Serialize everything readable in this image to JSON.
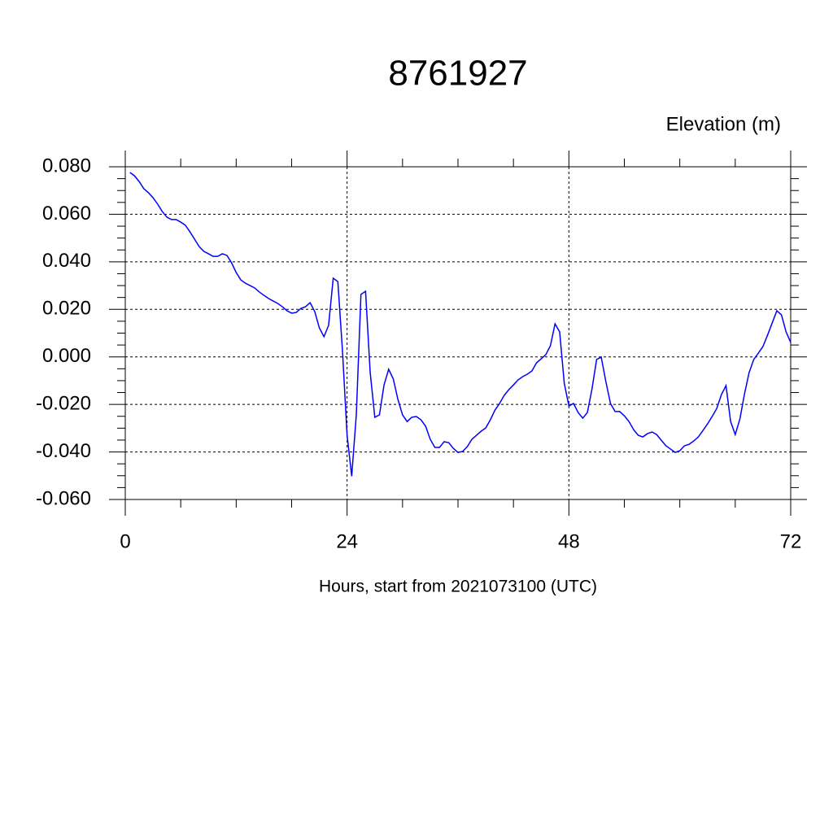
{
  "chart_data": {
    "type": "line",
    "title": "8761927",
    "ylabel": "Elevation (m)",
    "xlabel": "Hours, start from 2021073100 (UTC)",
    "xlim": [
      0,
      72
    ],
    "xticks": [
      0,
      24,
      48,
      72
    ],
    "ylim": [
      -0.06,
      0.08
    ],
    "yticks": [
      {
        "value": -0.06,
        "label": "-0.060"
      },
      {
        "value": -0.04,
        "label": "-0.040"
      },
      {
        "value": -0.02,
        "label": "-0.020"
      },
      {
        "value": 0,
        "label": "0.000"
      },
      {
        "value": 0.02,
        "label": "0.020"
      },
      {
        "value": 0.04,
        "label": "0.040"
      },
      {
        "value": 0.06,
        "label": "0.060"
      },
      {
        "value": 0.08,
        "label": "0.080"
      }
    ],
    "grid": true,
    "color": "#0000ff",
    "x": [
      0.5,
      1,
      1.5,
      2,
      2.5,
      3,
      3.5,
      4,
      4.5,
      5,
      5.5,
      6,
      6.5,
      7,
      7.5,
      8,
      8.5,
      9,
      9.5,
      10,
      10.5,
      11,
      11.5,
      12,
      12.5,
      13,
      13.5,
      14,
      14.5,
      15,
      15.5,
      16,
      16.5,
      17,
      17.5,
      18,
      18.5,
      19,
      19.5,
      20,
      20.5,
      21,
      21.5,
      22,
      22.5,
      23,
      23.5,
      24,
      24.5,
      25,
      25.5,
      26,
      26.5,
      27,
      27.5,
      28,
      28.5,
      29,
      29.5,
      30,
      30.5,
      31,
      31.5,
      32,
      32.5,
      33,
      33.5,
      34,
      34.5,
      35,
      35.5,
      36,
      36.5,
      37,
      37.5,
      38,
      38.5,
      39,
      39.5,
      40,
      40.5,
      41,
      41.5,
      42,
      42.5,
      43,
      43.5,
      44,
      44.5,
      45,
      45.5,
      46,
      46.5,
      47,
      47.5,
      48,
      48.5,
      49,
      49.5,
      50,
      50.5,
      51,
      51.5,
      52,
      52.5,
      53,
      53.5,
      54,
      54.5,
      55,
      55.5,
      56,
      56.5,
      57,
      57.5,
      58,
      58.5,
      59,
      59.5,
      60,
      60.5,
      61,
      61.5,
      62,
      62.5,
      63,
      63.5,
      64,
      64.5,
      65,
      65.5,
      66,
      66.5,
      67,
      67.5,
      68,
      68.5,
      69,
      69.5,
      70,
      70.5,
      71,
      71.5,
      72
    ],
    "values": [
      0.0776,
      0.0762,
      0.0738,
      0.0708,
      0.0691,
      0.067,
      0.0643,
      0.0612,
      0.0588,
      0.0578,
      0.0578,
      0.0567,
      0.0554,
      0.0526,
      0.0495,
      0.0464,
      0.0444,
      0.0434,
      0.0423,
      0.0423,
      0.0434,
      0.0427,
      0.0396,
      0.0355,
      0.0324,
      0.031,
      0.03,
      0.029,
      0.0273,
      0.0259,
      0.0246,
      0.0235,
      0.0225,
      0.0211,
      0.0194,
      0.0184,
      0.0187,
      0.0204,
      0.0211,
      0.0228,
      0.0191,
      0.0122,
      0.0085,
      0.0133,
      0.0331,
      0.0317,
      0.0026,
      -0.033,
      -0.0502,
      -0.0242,
      0.0263,
      0.0276,
      -0.0066,
      -0.0254,
      -0.0244,
      -0.0118,
      -0.0052,
      -0.0093,
      -0.0179,
      -0.0244,
      -0.0272,
      -0.0254,
      -0.0251,
      -0.0265,
      -0.0292,
      -0.0347,
      -0.0381,
      -0.0381,
      -0.0357,
      -0.0361,
      -0.0385,
      -0.0402,
      -0.0398,
      -0.0378,
      -0.0347,
      -0.033,
      -0.0313,
      -0.0299,
      -0.0265,
      -0.0224,
      -0.0196,
      -0.0162,
      -0.0138,
      -0.0118,
      -0.0097,
      -0.0083,
      -0.0073,
      -0.0059,
      -0.0025,
      -0.0008,
      0.0009,
      0.0047,
      0.0139,
      0.0105,
      -0.0111,
      -0.0207,
      -0.0196,
      -0.0234,
      -0.0258,
      -0.0234,
      -0.0135,
      -0.0011,
      -0.0001,
      -0.0104,
      -0.0196,
      -0.023,
      -0.023,
      -0.0248,
      -0.0272,
      -0.0306,
      -0.033,
      -0.0337,
      -0.0323,
      -0.0316,
      -0.0327,
      -0.0351,
      -0.0374,
      -0.0388,
      -0.0402,
      -0.0395,
      -0.0374,
      -0.0368,
      -0.0354,
      -0.0337,
      -0.031,
      -0.0282,
      -0.0251,
      -0.0217,
      -0.0159,
      -0.0121,
      -0.0272,
      -0.0327,
      -0.0262,
      -0.0156,
      -0.0066,
      -0.0011,
      0.0016,
      0.0044,
      0.0092,
      0.0143,
      0.0194,
      0.0177,
      0.0105,
      0.0061
    ]
  }
}
